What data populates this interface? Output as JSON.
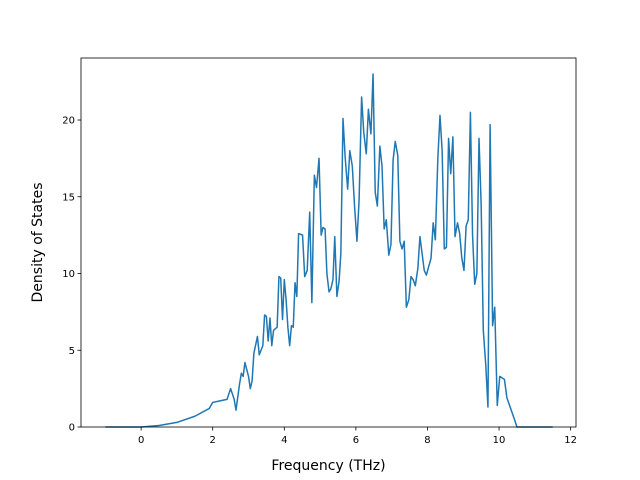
{
  "chart_data": {
    "type": "line",
    "x_label": "Frequency (THz)",
    "y_label": "Density of States",
    "xlim": [
      -1.68,
      12.15
    ],
    "ylim": [
      0,
      24.04
    ],
    "xticks": [
      0,
      2,
      4,
      6,
      8,
      10,
      12
    ],
    "yticks": [
      0,
      5,
      10,
      15,
      20
    ],
    "series": [
      {
        "color": "#1f77b4",
        "x": [
          -1.0,
          0,
          0.5,
          1.0,
          1.5,
          1.9,
          2.0,
          2.2,
          2.4,
          2.5,
          2.6,
          2.65,
          2.75,
          2.8,
          2.85,
          2.9,
          3.0,
          3.05,
          3.1,
          3.15,
          3.25,
          3.3,
          3.4,
          3.45,
          3.5,
          3.55,
          3.6,
          3.65,
          3.7,
          3.8,
          3.85,
          3.9,
          3.95,
          4.0,
          4.05,
          4.1,
          4.15,
          4.2,
          4.25,
          4.3,
          4.35,
          4.4,
          4.51,
          4.57,
          4.64,
          4.71,
          4.77,
          4.84,
          4.9,
          4.97,
          5.03,
          5.08,
          5.14,
          5.19,
          5.25,
          5.3,
          5.36,
          5.41,
          5.47,
          5.53,
          5.58,
          5.64,
          5.7,
          5.77,
          5.83,
          5.9,
          5.96,
          6.03,
          6.09,
          6.16,
          6.22,
          6.29,
          6.35,
          6.42,
          6.48,
          6.54,
          6.6,
          6.67,
          6.73,
          6.79,
          6.85,
          6.92,
          6.98,
          7.04,
          7.1,
          7.17,
          7.23,
          7.29,
          7.35,
          7.41,
          7.48,
          7.54,
          7.6,
          7.66,
          7.73,
          7.79,
          7.85,
          7.91,
          7.97,
          8.04,
          8.1,
          8.16,
          8.22,
          8.29,
          8.35,
          8.41,
          8.47,
          8.53,
          8.59,
          8.65,
          8.71,
          8.77,
          8.84,
          8.9,
          8.96,
          9.02,
          9.08,
          9.14,
          9.2,
          9.26,
          9.32,
          9.38,
          9.44,
          9.5,
          9.56,
          9.63,
          9.69,
          9.75,
          9.82,
          9.88,
          9.95,
          10.02,
          10.15,
          10.22,
          10.43,
          10.5,
          11.5
        ],
        "values": [
          0,
          0,
          0.1,
          0.3,
          0.7,
          1.2,
          1.6,
          1.7,
          1.8,
          2.5,
          1.8,
          1.1,
          2.8,
          3.5,
          3.3,
          4.2,
          3.3,
          2.5,
          3.0,
          4.8,
          5.9,
          4.7,
          5.3,
          7.3,
          7.2,
          5.6,
          7.1,
          5.3,
          6.3,
          6.5,
          9.8,
          9.7,
          7.0,
          9.6,
          8.3,
          6.5,
          5.3,
          6.6,
          6.5,
          9.4,
          8.5,
          12.6,
          12.5,
          9.8,
          10.2,
          14.0,
          8.1,
          16.4,
          15.6,
          17.5,
          12.5,
          13.0,
          12.9,
          10.0,
          8.8,
          9.0,
          9.6,
          12.4,
          8.5,
          9.5,
          11.3,
          20.1,
          17.6,
          15.5,
          18.0,
          17.0,
          14.5,
          12.1,
          14.8,
          21.5,
          19.2,
          17.8,
          20.7,
          19.1,
          23.0,
          15.3,
          14.4,
          18.3,
          17.0,
          12.9,
          13.5,
          11.2,
          11.9,
          17.4,
          18.6,
          17.7,
          12.1,
          11.6,
          12.1,
          7.8,
          8.3,
          9.8,
          9.6,
          9.2,
          10.3,
          12.4,
          11.3,
          10.2,
          9.9,
          10.5,
          11.0,
          13.3,
          12.2,
          17.5,
          20.3,
          18.0,
          11.6,
          11.7,
          18.8,
          16.5,
          18.9,
          12.4,
          13.3,
          12.6,
          11.0,
          10.2,
          13.1,
          13.5,
          20.5,
          12.5,
          9.3,
          10.0,
          18.8,
          14.5,
          6.3,
          4.0,
          1.3,
          19.7,
          6.6,
          7.8,
          1.4,
          3.3,
          3.1,
          1.9,
          0.5,
          0,
          0
        ]
      }
    ]
  }
}
